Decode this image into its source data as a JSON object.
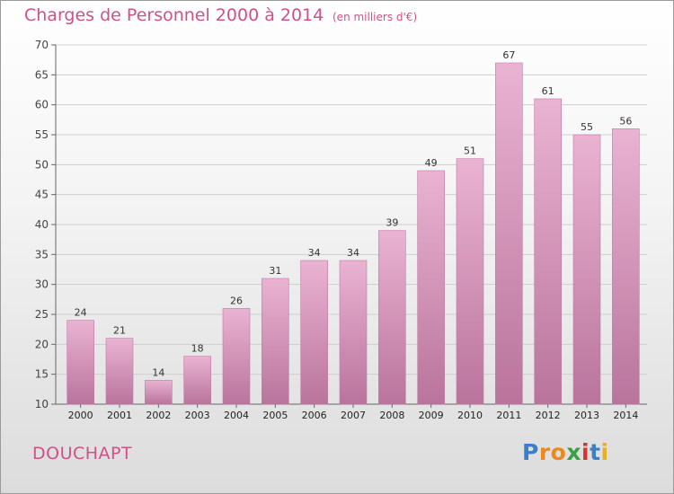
{
  "header": {
    "title": "Charges de Personnel 2000 à 2014",
    "subtitle": "(en milliers d'€)"
  },
  "footer": {
    "city": "DOUCHAPT",
    "logo": "Proxiti"
  },
  "colors": {
    "title": "#d0508a",
    "bar_light": "#eab3d2",
    "bar_dark": "#b9749c",
    "grid": "#cfcfcf"
  },
  "chart_data": {
    "type": "bar",
    "title": "Charges de Personnel 2000 à 2014",
    "subtitle": "(en milliers d'€)",
    "categories": [
      "2000",
      "2001",
      "2002",
      "2003",
      "2004",
      "2005",
      "2006",
      "2007",
      "2008",
      "2009",
      "2010",
      "2011",
      "2012",
      "2013",
      "2014"
    ],
    "values": [
      24,
      21,
      14,
      18,
      26,
      31,
      34,
      34,
      39,
      49,
      51,
      67,
      61,
      55,
      56
    ],
    "ylim": [
      10,
      70
    ],
    "yticks": [
      10,
      15,
      20,
      25,
      30,
      35,
      40,
      45,
      50,
      55,
      60,
      65,
      70
    ],
    "grid": true
  }
}
